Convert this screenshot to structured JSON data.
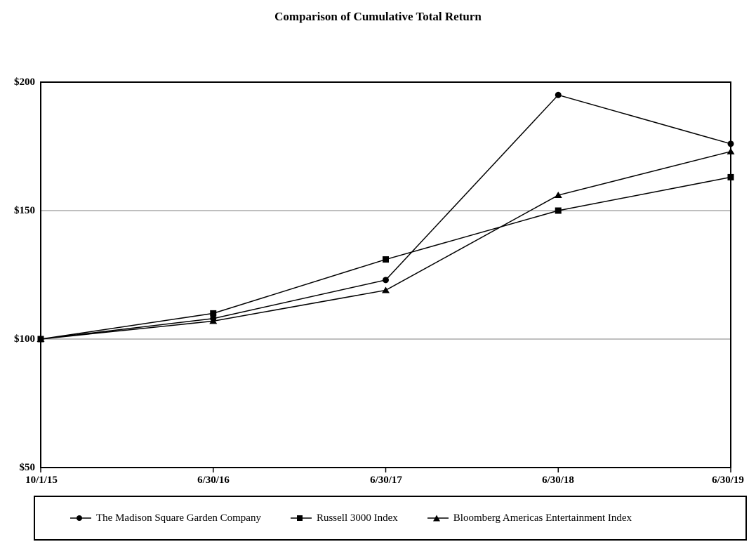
{
  "chart_data": {
    "type": "line",
    "title": "Comparison of Cumulative Total Return",
    "x": [
      "10/1/15",
      "6/30/16",
      "6/30/17",
      "6/30/18",
      "6/30/19"
    ],
    "series": [
      {
        "name": "The Madison Square Garden Company",
        "marker": "circle",
        "values": [
          100,
          108,
          123,
          195,
          176
        ]
      },
      {
        "name": "Russell 3000 Index",
        "marker": "square",
        "values": [
          100,
          110,
          131,
          150,
          163
        ]
      },
      {
        "name": "Bloomberg Americas Entertainment Index",
        "marker": "triangle",
        "values": [
          100,
          107,
          119,
          156,
          173
        ]
      }
    ],
    "ylim": [
      50,
      200
    ],
    "ytick_labels": [
      "$200",
      "$150",
      "$100",
      "$50"
    ],
    "ytick_values": [
      200,
      150,
      100,
      50
    ],
    "xlabel": "",
    "ylabel": "",
    "grid": "horizontal-inner",
    "legend_position": "bottom",
    "line_color": "#000000",
    "grid_color": "#999999",
    "background_color": "#ffffff"
  }
}
